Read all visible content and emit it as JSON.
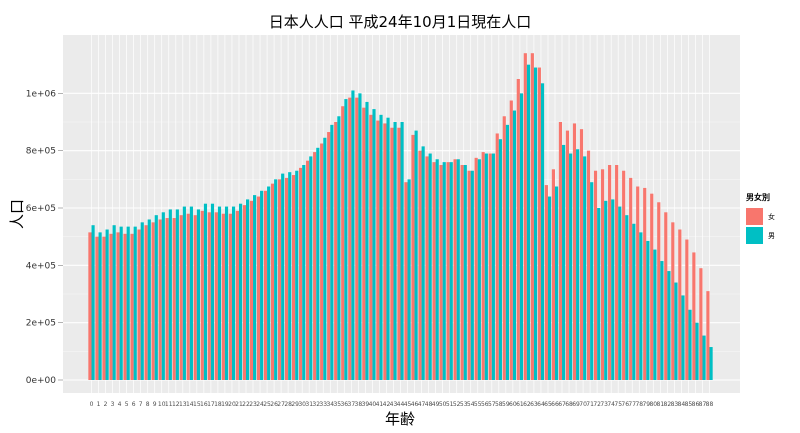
{
  "chart_data": {
    "type": "bar",
    "title": "日本人人口 平成24年10月1日現在人口",
    "xlabel": "年齢",
    "ylabel": "人口",
    "ylim": [
      0,
      1200000
    ],
    "yticks": [
      0,
      200000,
      400000,
      600000,
      800000,
      1000000
    ],
    "ytick_labels": [
      "0e+00",
      "2e+05",
      "4e+05",
      "6e+05",
      "8e+05",
      "1e+06"
    ],
    "grid": true,
    "legend": {
      "title": "男女別",
      "position": "right"
    },
    "categories": [
      "0",
      "1",
      "2",
      "3",
      "4",
      "5",
      "6",
      "7",
      "8",
      "9",
      "10",
      "11",
      "12",
      "13",
      "14",
      "15",
      "16",
      "17",
      "18",
      "19",
      "20",
      "21",
      "22",
      "23",
      "24",
      "25",
      "26",
      "27",
      "28",
      "29",
      "30",
      "31",
      "32",
      "33",
      "34",
      "35",
      "36",
      "37",
      "38",
      "39",
      "40",
      "41",
      "42",
      "43",
      "44",
      "45",
      "46",
      "47",
      "48",
      "49",
      "50",
      "51",
      "52",
      "53",
      "54",
      "55",
      "56",
      "57",
      "58",
      "59",
      "60",
      "61",
      "62",
      "63",
      "64",
      "65",
      "66",
      "67",
      "68",
      "69",
      "70",
      "71",
      "72",
      "73",
      "74",
      "75",
      "76",
      "77",
      "78",
      "79",
      "80",
      "81",
      "82",
      "83",
      "84",
      "85",
      "86",
      "87",
      "88"
    ],
    "series": [
      {
        "name": "女",
        "color": "#F8766D",
        "values": [
          515000,
          500000,
          500000,
          510000,
          515000,
          510000,
          510000,
          525000,
          540000,
          550000,
          560000,
          565000,
          565000,
          575000,
          580000,
          575000,
          590000,
          585000,
          585000,
          580000,
          580000,
          590000,
          610000,
          625000,
          640000,
          660000,
          685000,
          700000,
          705000,
          715000,
          740000,
          765000,
          795000,
          825000,
          865000,
          900000,
          955000,
          985000,
          985000,
          950000,
          925000,
          905000,
          895000,
          880000,
          880000,
          690000,
          855000,
          800000,
          780000,
          760000,
          750000,
          760000,
          770000,
          750000,
          730000,
          775000,
          795000,
          790000,
          860000,
          920000,
          975000,
          1050000,
          1140000,
          1140000,
          1090000,
          680000,
          735000,
          900000,
          870000,
          895000,
          875000,
          800000,
          730000,
          735000,
          750000,
          750000,
          730000,
          705000,
          675000,
          670000,
          650000,
          620000,
          585000,
          550000,
          525000,
          490000,
          445000,
          390000,
          310000
        ]
      },
      {
        "name": "男",
        "color": "#00BFC4",
        "values": [
          540000,
          515000,
          525000,
          540000,
          535000,
          535000,
          535000,
          550000,
          560000,
          575000,
          585000,
          595000,
          595000,
          605000,
          605000,
          595000,
          615000,
          615000,
          605000,
          605000,
          605000,
          615000,
          630000,
          645000,
          660000,
          675000,
          700000,
          720000,
          725000,
          730000,
          750000,
          780000,
          810000,
          845000,
          890000,
          920000,
          980000,
          1010000,
          1000000,
          970000,
          945000,
          925000,
          915000,
          900000,
          900000,
          700000,
          870000,
          815000,
          790000,
          770000,
          760000,
          760000,
          770000,
          750000,
          730000,
          770000,
          790000,
          790000,
          840000,
          890000,
          940000,
          1000000,
          1100000,
          1090000,
          1035000,
          640000,
          675000,
          820000,
          790000,
          805000,
          780000,
          690000,
          600000,
          625000,
          630000,
          605000,
          575000,
          545000,
          515000,
          485000,
          455000,
          415000,
          380000,
          340000,
          295000,
          245000,
          200000,
          155000,
          115000
        ]
      }
    ]
  }
}
